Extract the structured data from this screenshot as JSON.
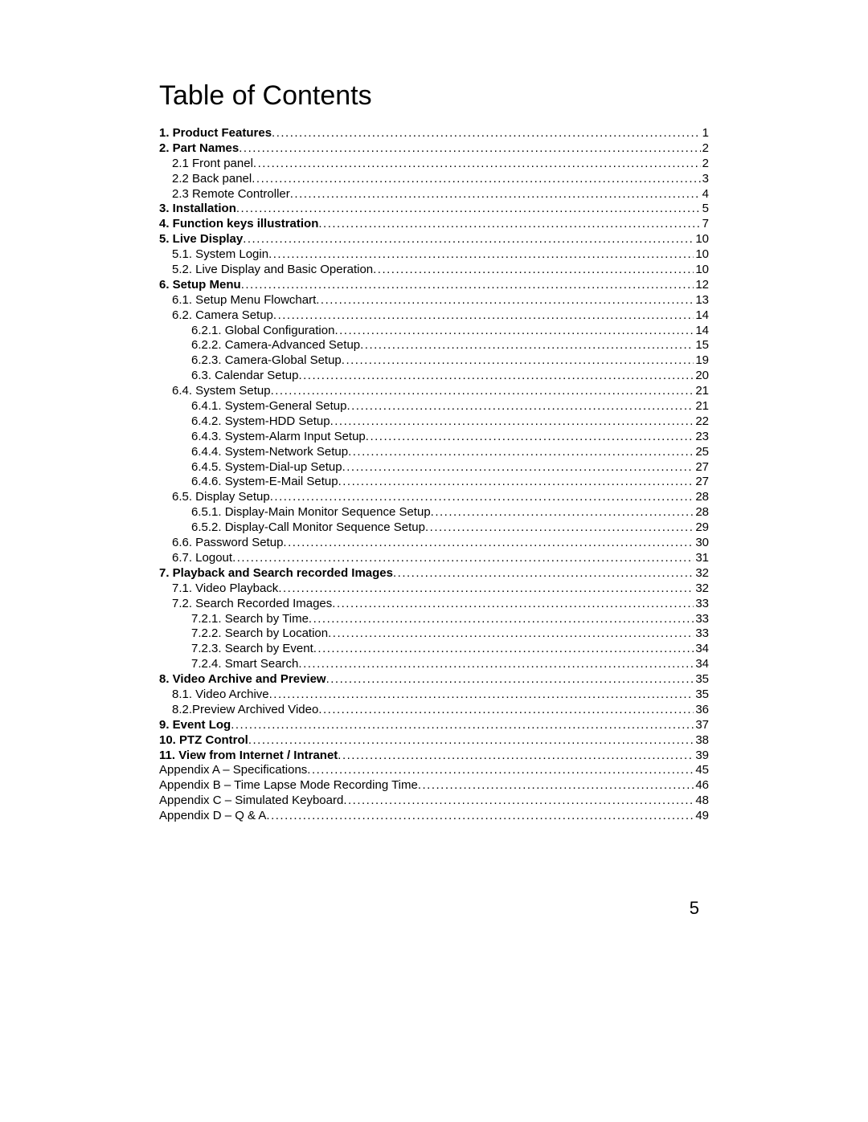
{
  "title": "Table of Contents",
  "page_number": "5",
  "entries": [
    {
      "label": "1. Product Features",
      "page": "1",
      "indent": 0,
      "bold": true
    },
    {
      "label": "2. Part Names",
      "page": "2",
      "indent": 0,
      "bold": true
    },
    {
      "label": "2.1 Front panel",
      "page": "2",
      "indent": 1,
      "bold": false
    },
    {
      "label": "2.2 Back panel",
      "page": "3",
      "indent": 1,
      "bold": false
    },
    {
      "label": "2.3 Remote Controller",
      "page": "4",
      "indent": 1,
      "bold": false
    },
    {
      "label": "3. Installation",
      "page": "5",
      "indent": 0,
      "bold": true
    },
    {
      "label": "4. Function keys illustration",
      "page": "7",
      "indent": 0,
      "bold": true
    },
    {
      "label": "5. Live Display",
      "page": "10",
      "indent": 0,
      "bold": true
    },
    {
      "label": "5.1. System Login",
      "page": "10",
      "indent": 1,
      "bold": false
    },
    {
      "label": "5.2. Live Display and Basic Operation",
      "page": "10",
      "indent": 1,
      "bold": false
    },
    {
      "label": "6. Setup Menu",
      "page": "12",
      "indent": 0,
      "bold": true
    },
    {
      "label": "6.1. Setup Menu Flowchart",
      "page": "13",
      "indent": 1,
      "bold": false
    },
    {
      "label": "6.2. Camera Setup",
      "page": "14",
      "indent": 1,
      "bold": false
    },
    {
      "label": "6.2.1. Global Configuration",
      "page": "14",
      "indent": 2,
      "bold": false
    },
    {
      "label": "6.2.2. Camera-Advanced Setup",
      "page": "15",
      "indent": 2,
      "bold": false
    },
    {
      "label": "6.2.3. Camera-Global Setup",
      "page": "19",
      "indent": 2,
      "bold": false
    },
    {
      "label": "6.3. Calendar Setup",
      "page": "20",
      "indent": 2,
      "bold": false
    },
    {
      "label": "6.4. System Setup",
      "page": "21",
      "indent": 1,
      "bold": false
    },
    {
      "label": "6.4.1. System-General Setup",
      "page": "21",
      "indent": 2,
      "bold": false
    },
    {
      "label": "6.4.2. System-HDD Setup",
      "page": "22",
      "indent": 2,
      "bold": false
    },
    {
      "label": "6.4.3. System-Alarm Input Setup",
      "page": "23",
      "indent": 2,
      "bold": false
    },
    {
      "label": "6.4.4. System-Network Setup",
      "page": "25",
      "indent": 2,
      "bold": false
    },
    {
      "label": "6.4.5. System-Dial-up  Setup",
      "page": "27",
      "indent": 2,
      "bold": false
    },
    {
      "label": "6.4.6. System-E-Mail Setup",
      "page": "27",
      "indent": 2,
      "bold": false
    },
    {
      "label": "6.5. Display Setup",
      "page": "28",
      "indent": 1,
      "bold": false
    },
    {
      "label": "6.5.1. Display-Main Monitor Sequence Setup",
      "page": "28",
      "indent": 2,
      "bold": false
    },
    {
      "label": "6.5.2. Display-Call Monitor Sequence Setup",
      "page": "29",
      "indent": 2,
      "bold": false
    },
    {
      "label": "6.6. Password Setup",
      "page": "30",
      "indent": 1,
      "bold": false
    },
    {
      "label": "6.7. Logout",
      "page": "31",
      "indent": 1,
      "bold": false
    },
    {
      "label": "7. Playback and Search recorded Images",
      "page": "32",
      "indent": 0,
      "bold": true
    },
    {
      "label": "7.1. Video Playback",
      "page": "32",
      "indent": 1,
      "bold": false
    },
    {
      "label": "7.2. Search Recorded Images",
      "page": "33",
      "indent": 1,
      "bold": false
    },
    {
      "label": "7.2.1. Search by Time",
      "page": "33",
      "indent": 2,
      "bold": false
    },
    {
      "label": "7.2.2. Search by Location",
      "page": "33",
      "indent": 2,
      "bold": false
    },
    {
      "label": "7.2.3. Search by Event",
      "page": "34",
      "indent": 2,
      "bold": false
    },
    {
      "label": "7.2.4. Smart Search",
      "page": "34",
      "indent": 2,
      "bold": false
    },
    {
      "label": "8. Video Archive and Preview",
      "page": "35",
      "indent": 0,
      "bold": true
    },
    {
      "label": "8.1. Video Archive",
      "page": "35",
      "indent": 1,
      "bold": false
    },
    {
      "label": "8.2.Preview Archived Video",
      "page": "36",
      "indent": 1,
      "bold": false
    },
    {
      "label": "9. Event Log",
      "page": "37",
      "indent": 0,
      "bold": true
    },
    {
      "label": "10. PTZ Control",
      "page": "38",
      "indent": 0,
      "bold": true
    },
    {
      "label": "11. View from Internet / Intranet",
      "page": "39",
      "indent": 0,
      "bold": true
    },
    {
      "label": "Appendix A – Specifications",
      "page": "45",
      "indent": 0,
      "bold": false
    },
    {
      "label": "Appendix B – Time Lapse Mode Recording Time",
      "page": "46",
      "indent": 0,
      "bold": false
    },
    {
      "label": "Appendix C – Simulated Keyboard",
      "page": "48",
      "indent": 0,
      "bold": false
    },
    {
      "label": "Appendix D – Q & A",
      "page": "49",
      "indent": 0,
      "bold": false
    }
  ]
}
